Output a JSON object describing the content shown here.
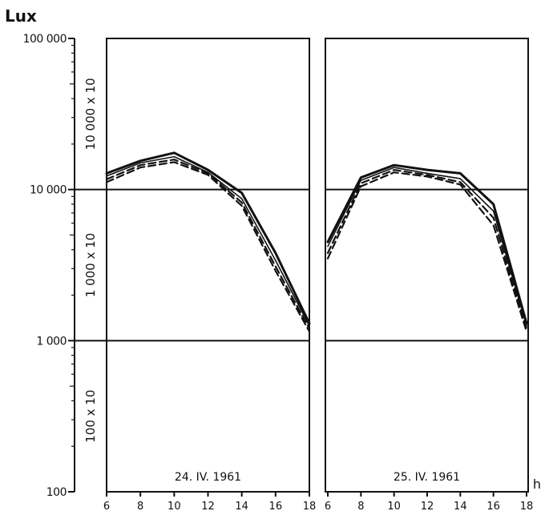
{
  "chart_data": {
    "type": "line",
    "y_unit_label": "Lux",
    "y_scale": "log",
    "ylim": [
      100,
      100000
    ],
    "y_ticks": [
      "100",
      "1 000",
      "10 000",
      "100 000"
    ],
    "x_unit_label": "h",
    "band_labels": [
      "100 x 10",
      "1 000 x 10",
      "10 000 x 10"
    ],
    "grid": "horizontal lines at decades",
    "panels": [
      {
        "date_label": "24. IV. 1961",
        "x_ticks": [
          "6",
          "8",
          "10",
          "12",
          "14",
          "16",
          "18"
        ],
        "xlim": [
          6,
          18
        ],
        "series": [
          {
            "x": [
              6,
              8,
              10,
              12,
              14,
              16,
              18
            ],
            "y": [
              12800,
              15500,
              17500,
              13500,
              9500,
              3800,
              1300
            ],
            "style": "solid-thick"
          },
          {
            "x": [
              6,
              8,
              10,
              12,
              14,
              16,
              18
            ],
            "y": [
              12300,
              15000,
              16500,
              13000,
              8700,
              3400,
              1250
            ],
            "style": "solid"
          },
          {
            "x": [
              6,
              8,
              10,
              12,
              14,
              16,
              18
            ],
            "y": [
              11700,
              14500,
              15800,
              12800,
              8200,
              3100,
              1200
            ],
            "style": "dashed"
          },
          {
            "x": [
              6,
              8,
              10,
              12,
              14,
              16,
              18
            ],
            "y": [
              11200,
              14000,
              15200,
              12500,
              7800,
              2900,
              1150
            ],
            "style": "dashed"
          }
        ]
      },
      {
        "date_label": "25. IV. 1961",
        "x_ticks": [
          "6",
          "8",
          "10",
          "12",
          "14",
          "16",
          "18"
        ],
        "xlim": [
          6,
          18
        ],
        "series": [
          {
            "x": [
              6,
              8,
              10,
              12,
              14,
              16,
              18
            ],
            "y": [
              4500,
              12000,
              14500,
              13500,
              12800,
              8000,
              1300
            ],
            "style": "solid-thick"
          },
          {
            "x": [
              6,
              8,
              10,
              12,
              14,
              16,
              18
            ],
            "y": [
              4200,
              11500,
              14000,
              12800,
              11800,
              7200,
              1250
            ],
            "style": "solid"
          },
          {
            "x": [
              6,
              8,
              10,
              12,
              14,
              16,
              18
            ],
            "y": [
              3800,
              11000,
              13500,
              12500,
              11200,
              6500,
              1200
            ],
            "style": "dashed"
          },
          {
            "x": [
              6,
              8,
              10,
              12,
              14,
              16,
              18
            ],
            "y": [
              3500,
              10500,
              13000,
              12200,
              10800,
              5800,
              1150
            ],
            "style": "dashed"
          }
        ]
      }
    ]
  }
}
